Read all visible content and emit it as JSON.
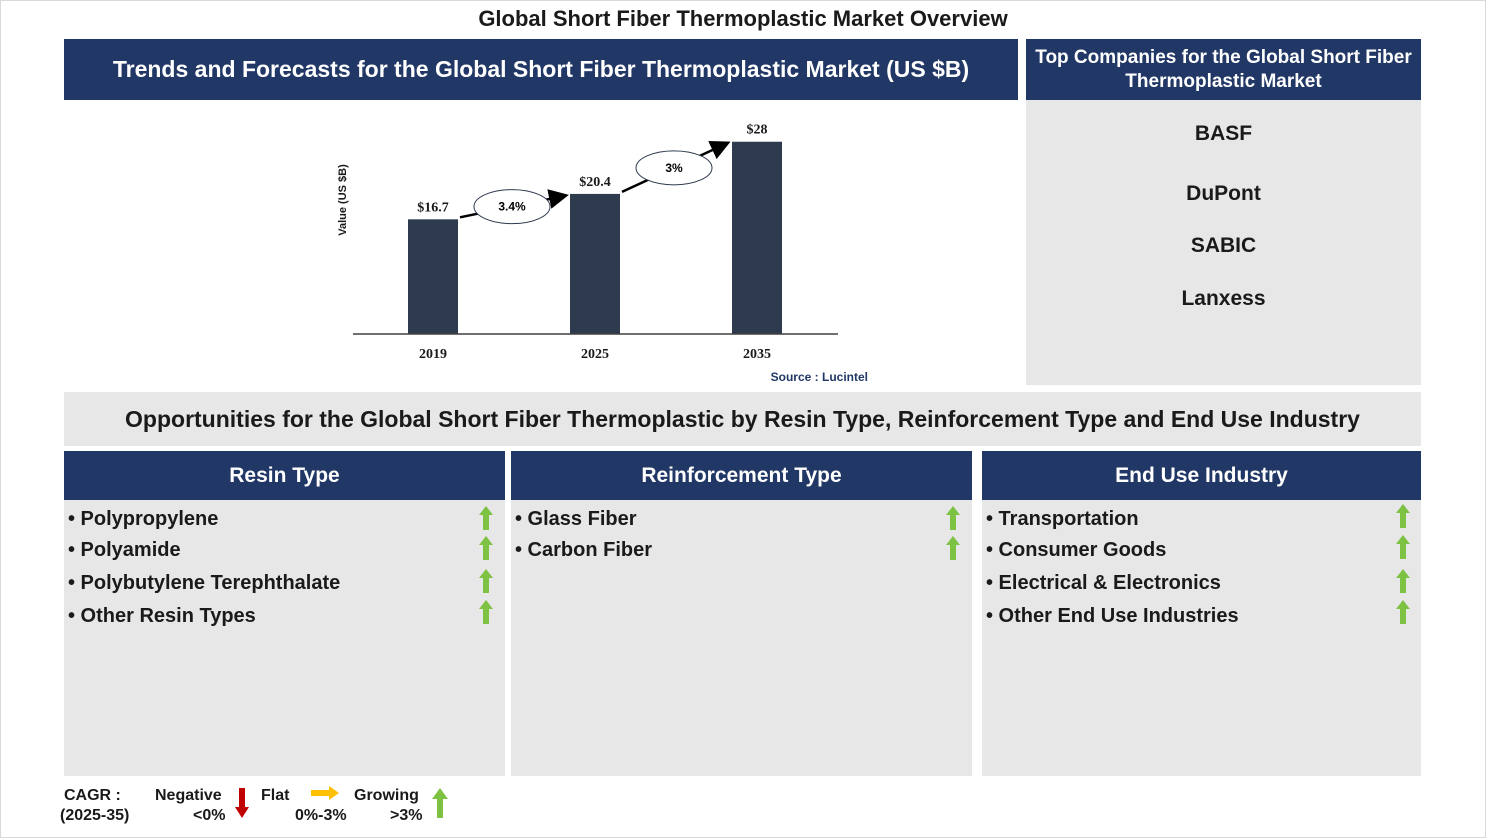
{
  "main_title": "Global Short Fiber Thermoplastic Market Overview",
  "trend_header": "Trends and Forecasts for the Global Short Fiber Thermoplastic Market (US $B)",
  "companies": {
    "header_line1": "Top Companies for the Global Short Fiber",
    "header_line2": "Thermoplastic Market",
    "items": [
      "BASF",
      "DuPont",
      "SABIC",
      "Lanxess"
    ]
  },
  "chart_data": {
    "type": "bar",
    "categories": [
      "2019",
      "2025",
      "2035"
    ],
    "values": [
      16.7,
      20.4,
      28
    ],
    "value_labels": [
      "$16.7",
      "$20.4",
      "$28"
    ],
    "ylabel": "Value (US $B)",
    "ylim": [
      0,
      30
    ],
    "cagr_labels": [
      "3.4%",
      "3%"
    ],
    "source": "Source : Lucintel",
    "bar_color": "#2e3a4e"
  },
  "opportunities_header": "Opportunities for the Global Short Fiber Thermoplastic by Resin Type, Reinforcement Type and End Use Industry",
  "columns": [
    {
      "title": "Resin Type",
      "items": [
        "• Polypropylene",
        "• Polyamide",
        "• Polybutylene Terephthalate",
        "• Other Resin Types"
      ]
    },
    {
      "title": "Reinforcement Type",
      "items": [
        "• Glass Fiber",
        "• Carbon Fiber"
      ]
    },
    {
      "title": "End Use Industry",
      "items": [
        "• Transportation",
        "• Consumer Goods",
        "• Electrical & Electronics",
        "• Other End Use Industries"
      ]
    }
  ],
  "legend": {
    "cagr_label": "CAGR :",
    "period": "(2025-35)",
    "negative": "Negative",
    "negative_range": "<0%",
    "flat": "Flat",
    "flat_range": "0%-3%",
    "growing": "Growing",
    "growing_range": ">3%"
  },
  "colors": {
    "navy": "#213765",
    "panel": "#e7e7e7",
    "growing": "#7dc242",
    "negative": "#c00000",
    "flat": "#ffc000"
  }
}
